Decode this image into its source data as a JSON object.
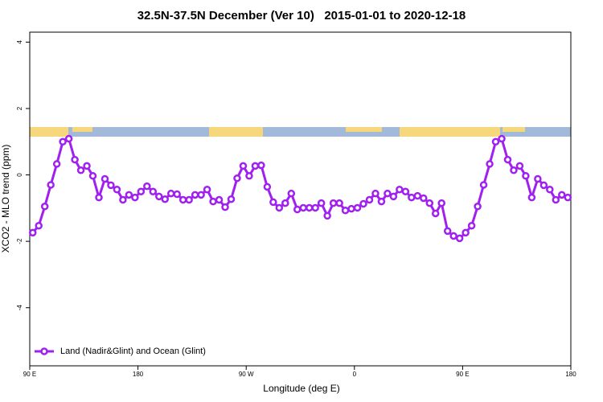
{
  "chart_data": {
    "type": "line",
    "title": "32.5N-37.5N December (Ver 10)   2015-01-01 to 2020-12-18",
    "x_label": "Longitude (deg E)",
    "y_label": "XCO2 - MLO trend (ppm)",
    "xlim": [
      90,
      540
    ],
    "ylim": [
      -5.75,
      4.3
    ],
    "xticks": [
      {
        "value": 90,
        "label": "90 E"
      },
      {
        "value": 180,
        "label": "180"
      },
      {
        "value": 270,
        "label": "90 W"
      },
      {
        "value": 360,
        "label": "0"
      },
      {
        "value": 450,
        "label": "90 E"
      },
      {
        "value": 540,
        "label": "180"
      }
    ],
    "yticks": [
      -4,
      -2,
      0,
      2,
      4
    ],
    "legend": "bottom-left",
    "x": [
      92.5,
      97.5,
      102.5,
      107.5,
      112.5,
      117.5,
      122.5,
      127.5,
      132.5,
      137.5,
      142.5,
      147.5,
      152.5,
      157.5,
      162.5,
      167.5,
      172.5,
      177.5,
      182.5,
      187.5,
      192.5,
      197.5,
      202.5,
      207.5,
      212.5,
      217.5,
      222.5,
      227.5,
      232.5,
      237.5,
      242.5,
      247.5,
      252.5,
      257.5,
      262.5,
      267.5,
      272.5,
      277.5,
      282.5,
      287.5,
      292.5,
      297.5,
      302.5,
      307.5,
      312.5,
      317.5,
      322.5,
      327.5,
      332.5,
      337.5,
      342.5,
      347.5,
      352.5,
      357.5,
      362.5,
      367.5,
      372.5,
      377.5,
      382.5,
      387.5,
      392.5,
      397.5,
      402.5,
      407.5,
      412.5,
      417.5,
      422.5,
      427.5,
      432.5,
      437.5,
      442.5,
      447.5,
      452.5,
      457.5,
      462.5,
      467.5,
      472.5,
      477.5,
      482.5,
      487.5,
      492.5,
      497.5,
      502.5,
      507.5,
      512.5,
      517.5,
      522.5,
      527.5,
      532.5,
      537.5
    ],
    "series": [
      {
        "name": "Land (Nadir&Glint) and Ocean (Glint)",
        "color": "#a020f0",
        "values": [
          -1.74,
          -1.53,
          -0.95,
          -0.3,
          0.33,
          1.0,
          1.09,
          0.46,
          0.14,
          0.27,
          -0.03,
          -0.68,
          -0.12,
          -0.31,
          -0.44,
          -0.75,
          -0.6,
          -0.68,
          -0.5,
          -0.34,
          -0.5,
          -0.65,
          -0.73,
          -0.56,
          -0.58,
          -0.75,
          -0.75,
          -0.6,
          -0.6,
          -0.44,
          -0.8,
          -0.75,
          -0.97,
          -0.73,
          -0.1,
          0.27,
          -0.03,
          0.27,
          0.29,
          -0.36,
          -0.82,
          -0.99,
          -0.85,
          -0.56,
          -1.04,
          -0.99,
          -0.99,
          -0.99,
          -0.85,
          -1.23,
          -0.85,
          -0.85,
          -1.07,
          -1.02,
          -0.99,
          -0.87,
          -0.75,
          -0.56,
          -0.8,
          -0.56,
          -0.65,
          -0.44,
          -0.5,
          -0.68,
          -0.63,
          -0.7,
          -0.85,
          -1.16,
          -0.85,
          -1.69,
          -1.84,
          -1.91,
          -1.74,
          -1.53,
          -0.95,
          -0.3,
          0.33,
          1.0,
          1.09,
          0.46,
          0.14,
          0.27,
          -0.03,
          -0.68,
          -0.12,
          -0.31,
          -0.44,
          -0.75,
          -0.6,
          -0.68
        ]
      }
    ]
  }
}
